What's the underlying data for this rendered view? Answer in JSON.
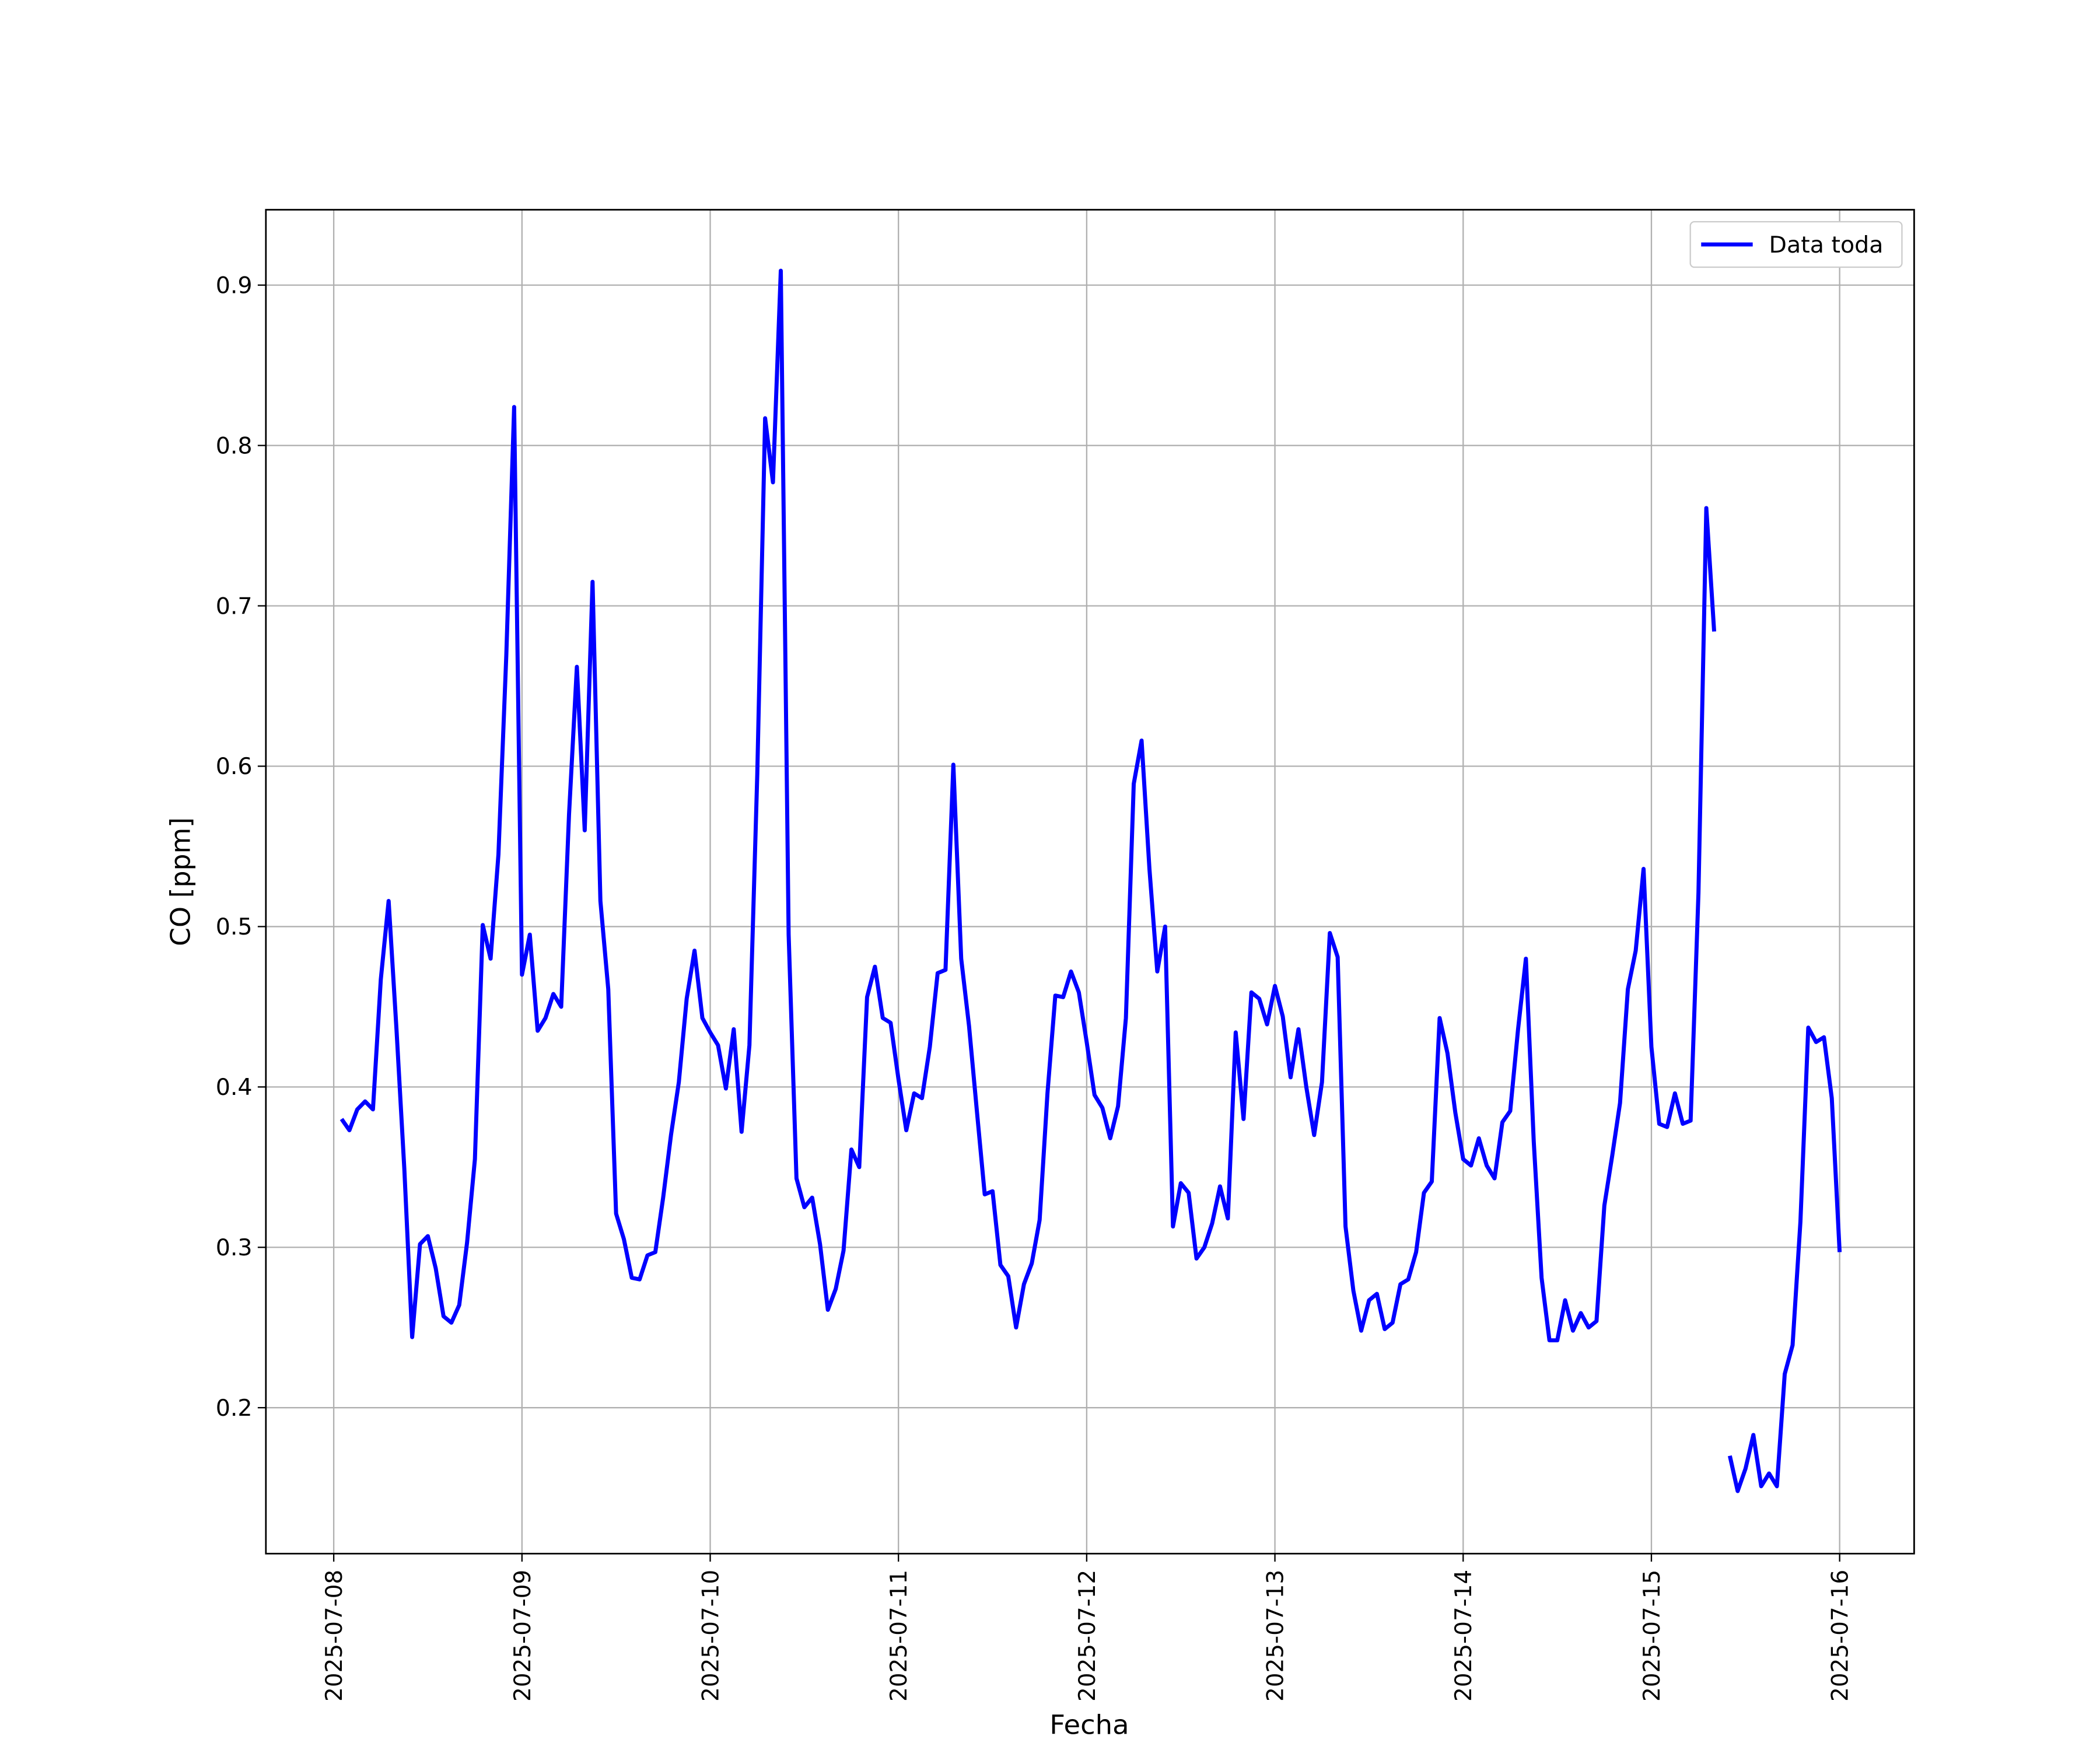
{
  "chart_data": {
    "type": "line",
    "x_label": "Fecha",
    "y_label": "CO [ppm]",
    "x": [
      1,
      2,
      3,
      4,
      5,
      6,
      7,
      8,
      9,
      10,
      11,
      12,
      13,
      14,
      15,
      16,
      17,
      18,
      19,
      20,
      21,
      22,
      23,
      24,
      25,
      26,
      27,
      28,
      29,
      30,
      31,
      32,
      33,
      34,
      35,
      36,
      37,
      38,
      39,
      40,
      41,
      42,
      43,
      44,
      45,
      46,
      47,
      48,
      49,
      50,
      51,
      52,
      53,
      54,
      55,
      56,
      57,
      58,
      59,
      60,
      61,
      62,
      63,
      64,
      65,
      66,
      67,
      68,
      69,
      70,
      71,
      72,
      73,
      74,
      75,
      76,
      77,
      78,
      79,
      80,
      81,
      82,
      83,
      84,
      85,
      86,
      87,
      88,
      89,
      90,
      91,
      92,
      93,
      94,
      95,
      96,
      97,
      98,
      99,
      100,
      101,
      102,
      103,
      104,
      105,
      106,
      107,
      108,
      109,
      110,
      111,
      112,
      113,
      114,
      115,
      116,
      117,
      118,
      119,
      120,
      121,
      122,
      123,
      124,
      125,
      126,
      127,
      128,
      129,
      130,
      131,
      132,
      133,
      134,
      135,
      136,
      137,
      138,
      139,
      140,
      141,
      142,
      143,
      144,
      145,
      146,
      147,
      148,
      149,
      150,
      151,
      152,
      153,
      154,
      155,
      156,
      157,
      158,
      159,
      160,
      161,
      162,
      163,
      164,
      165,
      166,
      167,
      168,
      169,
      170,
      171,
      172,
      173,
      174,
      175,
      176,
      177,
      178,
      179,
      180,
      181,
      182,
      183,
      184,
      185,
      186,
      187,
      188,
      189,
      190,
      191,
      192
    ],
    "series": [
      {
        "name": "Data toda",
        "color": "#0000ff",
        "values": [
          0.38,
          0.373,
          0.386,
          0.391,
          0.386,
          0.467,
          0.516,
          0.436,
          0.349,
          0.244,
          0.302,
          0.307,
          0.287,
          0.257,
          0.253,
          0.264,
          0.303,
          0.355,
          0.501,
          0.48,
          0.545,
          0.669,
          0.824,
          0.47,
          0.495,
          0.435,
          0.443,
          0.458,
          0.45,
          0.57,
          0.662,
          0.56,
          0.715,
          0.516,
          0.461,
          0.321,
          0.305,
          0.281,
          0.28,
          0.295,
          0.297,
          0.331,
          0.37,
          0.403,
          0.455,
          0.485,
          0.443,
          0.434,
          0.426,
          0.399,
          0.436,
          0.372,
          0.426,
          0.595,
          0.817,
          0.777,
          0.909,
          0.495,
          0.343,
          0.325,
          0.331,
          0.302,
          0.261,
          0.274,
          0.298,
          0.361,
          0.35,
          0.456,
          0.475,
          0.443,
          0.44,
          0.405,
          0.373,
          0.396,
          0.393,
          0.425,
          0.471,
          0.473,
          0.601,
          0.48,
          0.438,
          0.385,
          0.333,
          0.335,
          0.289,
          0.282,
          0.25,
          0.277,
          0.29,
          0.317,
          0.396,
          0.457,
          0.456,
          0.472,
          0.459,
          0.428,
          0.395,
          0.387,
          0.368,
          0.388,
          0.443,
          0.589,
          0.616,
          0.536,
          0.472,
          0.5,
          0.313,
          0.34,
          0.334,
          0.293,
          0.3,
          0.315,
          0.338,
          0.318,
          0.434,
          0.38,
          0.459,
          0.455,
          0.439,
          0.463,
          0.444,
          0.406,
          0.436,
          0.4,
          0.37,
          0.403,
          0.496,
          0.481,
          0.313,
          0.273,
          0.248,
          0.267,
          0.271,
          0.249,
          0.253,
          0.277,
          0.28,
          0.297,
          0.334,
          0.341,
          0.443,
          0.421,
          0.384,
          0.355,
          0.351,
          0.368,
          0.351,
          0.343,
          0.378,
          0.385,
          0.436,
          0.48,
          0.366,
          0.281,
          0.242,
          0.242,
          0.267,
          0.248,
          0.259,
          0.25,
          0.254,
          0.326,
          0.357,
          0.39,
          0.461,
          0.485,
          0.536,
          0.425,
          0.377,
          0.375,
          0.396,
          0.377,
          0.379,
          0.521,
          0.761,
          0.684,
          null,
          0.17,
          0.148,
          0.162,
          0.183,
          0.151,
          0.159,
          0.151,
          0.221,
          0.239,
          0.316,
          0.437,
          0.428,
          0.431,
          0.393,
          0.297
        ]
      }
    ],
    "xlim": [
      -8.65,
      201.5
    ],
    "xticks": [
      {
        "value": 0,
        "label": "2025-07-08"
      },
      {
        "value": 24,
        "label": "2025-07-09"
      },
      {
        "value": 48,
        "label": "2025-07-10"
      },
      {
        "value": 72,
        "label": "2025-07-11"
      },
      {
        "value": 96,
        "label": "2025-07-12"
      },
      {
        "value": 120,
        "label": "2025-07-13"
      },
      {
        "value": 144,
        "label": "2025-07-14"
      },
      {
        "value": 168,
        "label": "2025-07-15"
      },
      {
        "value": 192,
        "label": "2025-07-16"
      }
    ],
    "ylim": [
      0.109,
      0.947
    ],
    "yticks": [
      0.2,
      0.3,
      0.4,
      0.5,
      0.6,
      0.7,
      0.8,
      0.9
    ],
    "grid": true,
    "legend": "upper right"
  }
}
